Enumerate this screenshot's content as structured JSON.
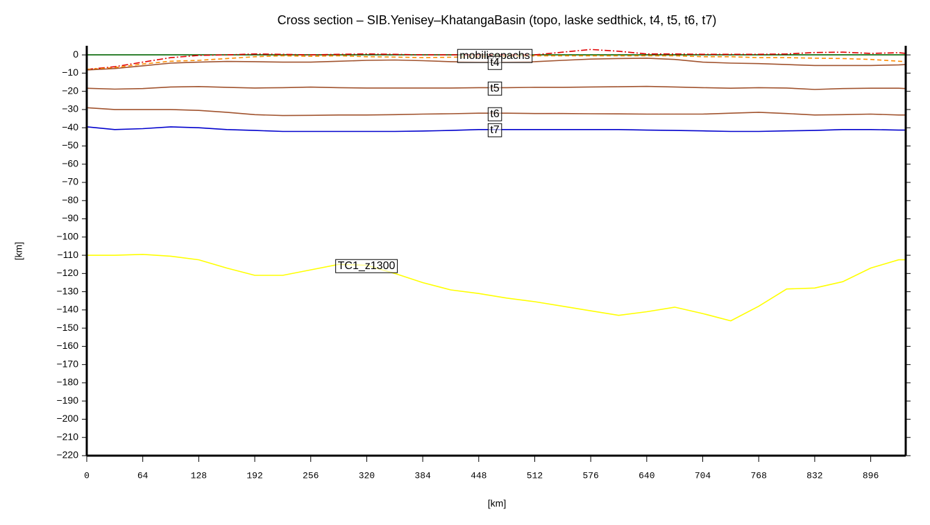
{
  "chart_data": {
    "type": "line",
    "title": "Cross section – SIB.Yenisey–KhatangaBasin (topo, laske sedthick, t4, t5, t6, t7)",
    "x_label": "[km]",
    "y_label": "[km]",
    "x": [
      0,
      32,
      64,
      96,
      128,
      160,
      192,
      224,
      256,
      288,
      320,
      352,
      384,
      416,
      448,
      480,
      512,
      544,
      576,
      608,
      640,
      672,
      704,
      736,
      768,
      800,
      832,
      864,
      896,
      928,
      936
    ],
    "xlim": [
      0,
      936
    ],
    "xticks": [
      0,
      64,
      128,
      192,
      256,
      320,
      384,
      448,
      512,
      576,
      640,
      704,
      768,
      832,
      896
    ],
    "ylim": [
      -220,
      5
    ],
    "yticks": [
      0,
      {
        "value": -10,
        "label": "−10"
      },
      {
        "value": -20,
        "label": "−20"
      },
      {
        "value": -30,
        "label": "−30"
      },
      {
        "value": -40,
        "label": "−40"
      },
      {
        "value": -50,
        "label": "−50"
      },
      {
        "value": -60,
        "label": "−60"
      },
      {
        "value": -70,
        "label": "−70"
      },
      {
        "value": -80,
        "label": "−80"
      },
      {
        "value": -90,
        "label": "−90"
      },
      {
        "value": -100,
        "label": "−100"
      },
      {
        "value": -110,
        "label": "−110"
      },
      {
        "value": -120,
        "label": "−120"
      },
      {
        "value": -130,
        "label": "−130"
      },
      {
        "value": -140,
        "label": "−140"
      },
      {
        "value": -150,
        "label": "−150"
      },
      {
        "value": -160,
        "label": "−160"
      },
      {
        "value": -170,
        "label": "−170"
      },
      {
        "value": -180,
        "label": "−180"
      },
      {
        "value": -190,
        "label": "−190"
      },
      {
        "value": -200,
        "label": "−200"
      },
      {
        "value": -210,
        "label": "−210"
      },
      {
        "value": -220,
        "label": "−220"
      }
    ],
    "series": [
      {
        "name": "mobilisopachs",
        "color": "#006400",
        "dash": "none",
        "values": [
          0,
          0,
          0,
          0,
          0,
          0,
          0,
          0,
          0,
          0,
          0,
          0,
          0,
          0,
          0,
          0,
          0,
          0,
          0,
          0,
          0,
          0,
          0,
          0,
          0,
          0,
          0,
          0,
          0,
          0,
          0
        ]
      },
      {
        "color": "#e00000",
        "dash": "9,3,2,3",
        "values": [
          -8,
          -6.5,
          -4,
          -1.5,
          -0.3,
          0,
          0.5,
          0.3,
          0,
          0.3,
          0.5,
          0.3,
          0,
          0,
          0,
          0,
          0,
          1.5,
          3,
          2,
          0.5,
          0.5,
          0.3,
          0.3,
          0.3,
          0.5,
          1.3,
          1.5,
          0.8,
          1.2,
          0.8
        ]
      },
      {
        "color": "#ff8c00",
        "dash": "6,4",
        "values": [
          -8,
          -7,
          -5,
          -3.5,
          -3,
          -2,
          -1,
          -0.5,
          -0.8,
          -0.5,
          -1,
          -1.2,
          -1.5,
          -1.3,
          -1,
          -0.8,
          -0.5,
          -0.5,
          -0.5,
          -0.5,
          -0.5,
          -0.5,
          -1,
          -1,
          -1.5,
          -1.5,
          -1.8,
          -2,
          -2.5,
          -3.5,
          -3.7
        ]
      },
      {
        "name": "t4",
        "color": "#a0522d",
        "dash": "none",
        "values": [
          -8.3,
          -7.5,
          -6,
          -4.5,
          -4,
          -3.6,
          -3.7,
          -4,
          -4,
          -3.5,
          -3,
          -2.8,
          -3.2,
          -3.7,
          -4,
          -4,
          -3.7,
          -3,
          -2.3,
          -2,
          -1.8,
          -2.5,
          -4,
          -4.5,
          -4.8,
          -5.3,
          -5.8,
          -5.8,
          -5.8,
          -5.5,
          -5.3
        ]
      },
      {
        "name": "t5",
        "color": "#a0522d",
        "dash": "none",
        "values": [
          -18.3,
          -18.8,
          -18.5,
          -17.6,
          -17.4,
          -17.8,
          -18.2,
          -18,
          -17.7,
          -18,
          -18.2,
          -18.2,
          -18.2,
          -18.2,
          -18,
          -18,
          -17.8,
          -17.8,
          -17.6,
          -17.5,
          -17.3,
          -17.6,
          -18,
          -18.3,
          -18,
          -18.2,
          -19,
          -18.5,
          -18.3,
          -18.3,
          -18.5
        ]
      },
      {
        "name": "t6",
        "color": "#a0522d",
        "dash": "none",
        "values": [
          -29,
          -30,
          -30,
          -30,
          -30.5,
          -31.5,
          -32.8,
          -33.3,
          -33.2,
          -33,
          -33,
          -32.8,
          -32.5,
          -32.3,
          -32,
          -32,
          -32.2,
          -32.2,
          -32.3,
          -32.4,
          -32.5,
          -32.5,
          -32.5,
          -32,
          -31.5,
          -32.2,
          -33,
          -32.8,
          -32.5,
          -33,
          -33
        ]
      },
      {
        "name": "t7",
        "color": "#0000cd",
        "dash": "none",
        "values": [
          -39.5,
          -41,
          -40.5,
          -39.5,
          -40,
          -41,
          -41.5,
          -42,
          -42,
          -42,
          -42,
          -42,
          -41.8,
          -41.5,
          -41,
          -41,
          -41,
          -41,
          -41,
          -41,
          -41.3,
          -41.5,
          -41.7,
          -42,
          -42,
          -41.7,
          -41.5,
          -41,
          -41,
          -41.3,
          -41.3
        ]
      },
      {
        "name": "TC1_z1300",
        "color": "#ffff00",
        "dash": "none",
        "values": [
          -110,
          -110,
          -109.5,
          -110.5,
          -112.5,
          -117,
          -121,
          -121,
          -118,
          -115,
          -115.5,
          -120,
          -125,
          -129,
          -131,
          -133.5,
          -135.5,
          -138,
          -140.5,
          -143,
          -141,
          -138.5,
          -142,
          -146,
          -138,
          -128.5,
          -128,
          -124.5,
          -117,
          -112.5,
          -112.5
        ]
      }
    ]
  }
}
